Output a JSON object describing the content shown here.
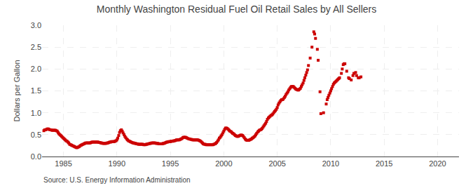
{
  "chart_data": {
    "type": "scatter",
    "title": "Monthly Washington Residual Fuel Oil Retail Sales by All Sellers",
    "ylabel": "Dollars per Gallon",
    "annotations": [
      "Source: U.S. Energy Information Administration"
    ],
    "color": "#cc0000",
    "marker": "square",
    "grid": true,
    "xlim": [
      1983,
      2022
    ],
    "ylim": [
      0.0,
      3.0
    ],
    "xticks": [
      1985,
      1990,
      1995,
      2000,
      2005,
      2010,
      2015,
      2020
    ],
    "yticks": [
      {
        "value": 0.0,
        "label": "0.0"
      },
      0.5,
      {
        "value": 1.0,
        "label": "1.0"
      },
      1.5,
      {
        "value": 2.0,
        "label": "2.0"
      },
      2.5,
      {
        "value": 3.0,
        "label": "3.0"
      }
    ],
    "x": [
      1983.17,
      1983.25,
      1983.33,
      1983.42,
      1983.5,
      1983.58,
      1983.67,
      1983.75,
      1983.83,
      1983.92,
      1984.0,
      1984.08,
      1984.17,
      1984.25,
      1984.33,
      1984.42,
      1984.5,
      1984.58,
      1984.67,
      1984.75,
      1984.83,
      1984.92,
      1985.0,
      1985.08,
      1985.17,
      1985.25,
      1985.33,
      1985.42,
      1985.5,
      1985.58,
      1985.67,
      1985.75,
      1985.83,
      1985.92,
      1986.0,
      1986.08,
      1986.17,
      1986.25,
      1986.33,
      1986.42,
      1986.5,
      1986.58,
      1986.67,
      1986.75,
      1986.83,
      1986.92,
      1987.0,
      1987.08,
      1987.17,
      1987.25,
      1987.33,
      1987.42,
      1987.5,
      1987.58,
      1987.67,
      1987.75,
      1987.83,
      1987.92,
      1988.0,
      1988.08,
      1988.17,
      1988.25,
      1988.33,
      1988.42,
      1988.5,
      1988.58,
      1988.67,
      1988.75,
      1988.83,
      1988.92,
      1989.0,
      1989.08,
      1989.17,
      1989.25,
      1989.33,
      1989.42,
      1989.5,
      1989.58,
      1989.67,
      1989.75,
      1989.83,
      1989.92,
      1990.0,
      1990.08,
      1990.17,
      1990.25,
      1990.33,
      1990.42,
      1990.5,
      1990.58,
      1990.67,
      1990.75,
      1990.83,
      1990.92,
      1991.0,
      1991.08,
      1991.17,
      1991.25,
      1991.33,
      1991.42,
      1991.5,
      1991.58,
      1991.67,
      1991.75,
      1991.83,
      1991.92,
      1992.0,
      1992.08,
      1992.17,
      1992.25,
      1992.33,
      1992.42,
      1992.5,
      1992.58,
      1992.67,
      1992.75,
      1992.83,
      1992.92,
      1993.0,
      1993.08,
      1993.17,
      1993.25,
      1993.33,
      1993.42,
      1993.5,
      1993.58,
      1993.67,
      1993.75,
      1993.83,
      1993.92,
      1994.0,
      1994.08,
      1994.17,
      1994.25,
      1994.33,
      1994.42,
      1994.5,
      1994.58,
      1994.67,
      1994.75,
      1994.83,
      1994.92,
      1995.0,
      1995.08,
      1995.17,
      1995.25,
      1995.33,
      1995.42,
      1995.5,
      1995.58,
      1995.67,
      1995.75,
      1995.83,
      1995.92,
      1996.0,
      1996.08,
      1996.17,
      1996.25,
      1996.33,
      1996.42,
      1996.5,
      1996.58,
      1996.67,
      1996.75,
      1996.83,
      1996.92,
      1997.0,
      1997.08,
      1997.17,
      1997.25,
      1997.33,
      1997.42,
      1997.5,
      1997.58,
      1997.67,
      1997.75,
      1997.83,
      1997.92,
      1998.0,
      1998.08,
      1998.17,
      1998.25,
      1998.33,
      1998.42,
      1998.5,
      1998.58,
      1998.67,
      1998.75,
      1998.83,
      1998.92,
      1999.0,
      1999.08,
      1999.17,
      1999.25,
      1999.33,
      1999.42,
      1999.5,
      1999.58,
      1999.67,
      1999.75,
      1999.83,
      1999.92,
      2000.0,
      2000.08,
      2000.17,
      2000.25,
      2000.33,
      2000.42,
      2000.5,
      2000.58,
      2000.67,
      2000.75,
      2000.83,
      2000.92,
      2001.0,
      2001.08,
      2001.17,
      2001.25,
      2001.33,
      2001.42,
      2001.5,
      2001.58,
      2001.67,
      2001.75,
      2001.83,
      2001.92,
      2002.0,
      2002.08,
      2002.17,
      2002.25,
      2002.33,
      2002.42,
      2002.5,
      2002.58,
      2002.67,
      2002.75,
      2002.83,
      2002.92,
      2003.0,
      2003.08,
      2003.17,
      2003.25,
      2003.33,
      2003.42,
      2003.5,
      2003.58,
      2003.67,
      2003.75,
      2003.83,
      2003.92,
      2004.0,
      2004.08,
      2004.17,
      2004.25,
      2004.33,
      2004.42,
      2004.5,
      2004.58,
      2004.67,
      2004.75,
      2004.83,
      2004.92,
      2005.0,
      2005.08,
      2005.17,
      2005.25,
      2005.33,
      2005.42,
      2005.5,
      2005.58,
      2005.67,
      2005.75,
      2005.83,
      2005.92,
      2006.0,
      2006.08,
      2006.17,
      2006.25,
      2006.33,
      2006.42,
      2006.5,
      2006.58,
      2006.67,
      2006.75,
      2006.83,
      2006.92,
      2007.0,
      2007.08,
      2007.17,
      2007.25,
      2007.33,
      2007.42,
      2007.5,
      2007.58,
      2007.67,
      2007.75,
      2007.83,
      2007.92,
      2008.08,
      2008.25,
      2008.42,
      2008.5,
      2008.58,
      2008.75,
      2008.83,
      2009.0,
      2009.08,
      2009.33,
      2009.58,
      2009.67,
      2009.75,
      2009.83,
      2009.92,
      2010.0,
      2010.08,
      2010.17,
      2010.25,
      2010.33,
      2010.42,
      2010.5,
      2010.58,
      2010.67,
      2010.75,
      2010.83,
      2011.0,
      2011.08,
      2011.17,
      2011.25,
      2011.33,
      2011.5,
      2011.67,
      2011.75,
      2011.92,
      2012.08,
      2012.17,
      2012.33,
      2012.42,
      2012.58,
      2012.67,
      2012.83
    ],
    "values": [
      0.59,
      0.61,
      0.61,
      0.62,
      0.63,
      0.63,
      0.62,
      0.61,
      0.61,
      0.6,
      0.6,
      0.6,
      0.6,
      0.6,
      0.59,
      0.58,
      0.55,
      0.52,
      0.5,
      0.48,
      0.46,
      0.44,
      0.42,
      0.4,
      0.38,
      0.36,
      0.35,
      0.33,
      0.31,
      0.28,
      0.27,
      0.26,
      0.25,
      0.24,
      0.23,
      0.22,
      0.21,
      0.2,
      0.21,
      0.22,
      0.23,
      0.25,
      0.26,
      0.27,
      0.28,
      0.29,
      0.3,
      0.31,
      0.31,
      0.31,
      0.31,
      0.31,
      0.31,
      0.32,
      0.33,
      0.33,
      0.33,
      0.33,
      0.33,
      0.33,
      0.33,
      0.33,
      0.32,
      0.32,
      0.31,
      0.31,
      0.3,
      0.3,
      0.3,
      0.3,
      0.3,
      0.31,
      0.31,
      0.32,
      0.33,
      0.33,
      0.34,
      0.34,
      0.34,
      0.34,
      0.35,
      0.36,
      0.38,
      0.42,
      0.48,
      0.55,
      0.59,
      0.61,
      0.58,
      0.54,
      0.5,
      0.46,
      0.43,
      0.4,
      0.38,
      0.36,
      0.35,
      0.34,
      0.33,
      0.32,
      0.31,
      0.31,
      0.3,
      0.3,
      0.29,
      0.29,
      0.28,
      0.28,
      0.28,
      0.28,
      0.28,
      0.28,
      0.27,
      0.27,
      0.27,
      0.28,
      0.28,
      0.29,
      0.29,
      0.3,
      0.3,
      0.31,
      0.31,
      0.31,
      0.31,
      0.31,
      0.3,
      0.3,
      0.3,
      0.29,
      0.29,
      0.29,
      0.29,
      0.29,
      0.3,
      0.3,
      0.31,
      0.32,
      0.33,
      0.33,
      0.34,
      0.34,
      0.34,
      0.35,
      0.35,
      0.35,
      0.36,
      0.36,
      0.37,
      0.38,
      0.38,
      0.38,
      0.38,
      0.39,
      0.4,
      0.41,
      0.43,
      0.44,
      0.44,
      0.44,
      0.43,
      0.42,
      0.41,
      0.4,
      0.4,
      0.39,
      0.39,
      0.38,
      0.38,
      0.38,
      0.38,
      0.38,
      0.38,
      0.38,
      0.37,
      0.36,
      0.35,
      0.33,
      0.31,
      0.29,
      0.28,
      0.28,
      0.27,
      0.27,
      0.27,
      0.27,
      0.27,
      0.27,
      0.27,
      0.27,
      0.27,
      0.28,
      0.29,
      0.3,
      0.32,
      0.35,
      0.38,
      0.42,
      0.44,
      0.47,
      0.5,
      0.54,
      0.58,
      0.62,
      0.65,
      0.65,
      0.64,
      0.62,
      0.6,
      0.58,
      0.57,
      0.55,
      0.53,
      0.52,
      0.5,
      0.48,
      0.47,
      0.46,
      0.46,
      0.47,
      0.48,
      0.49,
      0.49,
      0.48,
      0.46,
      0.43,
      0.4,
      0.38,
      0.37,
      0.37,
      0.37,
      0.38,
      0.39,
      0.4,
      0.42,
      0.43,
      0.45,
      0.47,
      0.5,
      0.53,
      0.56,
      0.58,
      0.6,
      0.61,
      0.62,
      0.64,
      0.67,
      0.7,
      0.73,
      0.76,
      0.8,
      0.85,
      0.88,
      0.9,
      0.92,
      0.94,
      0.95,
      0.97,
      1.0,
      1.03,
      1.05,
      1.08,
      1.12,
      1.18,
      1.22,
      1.25,
      1.28,
      1.3,
      1.3,
      1.32,
      1.35,
      1.38,
      1.42,
      1.45,
      1.48,
      1.52,
      1.55,
      1.58,
      1.6,
      1.6,
      1.6,
      1.58,
      1.56,
      1.54,
      1.53,
      1.52,
      1.52,
      1.54,
      1.56,
      1.6,
      1.64,
      1.68,
      1.74,
      1.8,
      1.86,
      1.92,
      1.98,
      2.08,
      2.25,
      2.5,
      2.85,
      2.8,
      2.7,
      2.45,
      2.2,
      1.48,
      0.98,
      1.0,
      1.2,
      1.3,
      1.35,
      1.4,
      1.45,
      1.5,
      1.55,
      1.6,
      1.65,
      1.68,
      1.7,
      1.72,
      1.74,
      1.76,
      1.78,
      1.8,
      1.9,
      2.0,
      2.1,
      2.12,
      2.12,
      1.95,
      1.8,
      1.78,
      1.75,
      1.85,
      1.9,
      1.92,
      1.85,
      1.8,
      1.8,
      1.82
    ]
  }
}
